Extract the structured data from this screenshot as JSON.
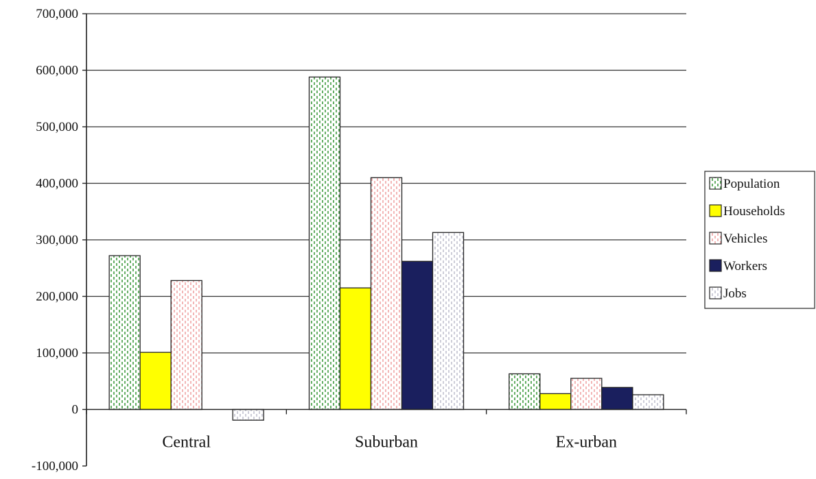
{
  "chart_data": {
    "type": "bar",
    "title": "",
    "xlabel": "",
    "ylabel": "",
    "categories": [
      "Central",
      "Suburban",
      "Ex-urban"
    ],
    "ylim": [
      -100000,
      700000
    ],
    "yticks": [
      -100000,
      0,
      100000,
      200000,
      300000,
      400000,
      500000,
      600000,
      700000
    ],
    "ytick_labels": [
      "-100,000",
      "0",
      "100,000",
      "200,000",
      "300,000",
      "400,000",
      "500,000",
      "600,000",
      "700,000"
    ],
    "grid": "horizontal major gridlines",
    "legend_position": "right",
    "series": [
      {
        "name": "Population",
        "values": [
          272000,
          588000,
          63000
        ],
        "color": "#ffffff",
        "pattern": "green-dashed-vertical"
      },
      {
        "name": "Households",
        "values": [
          101000,
          215000,
          28000
        ],
        "color": "#ffff00",
        "pattern": "solid"
      },
      {
        "name": "Vehicles",
        "values": [
          228000,
          410000,
          55000
        ],
        "color": "#ffffff",
        "pattern": "pink-dashed-vertical"
      },
      {
        "name": "Workers",
        "values": [
          0,
          262000,
          39000
        ],
        "color": "#1a1f5e",
        "pattern": "solid"
      },
      {
        "name": "Jobs",
        "values": [
          -19000,
          313000,
          26000
        ],
        "color": "#ffffff",
        "pattern": "gray-dashed-vertical"
      }
    ]
  }
}
